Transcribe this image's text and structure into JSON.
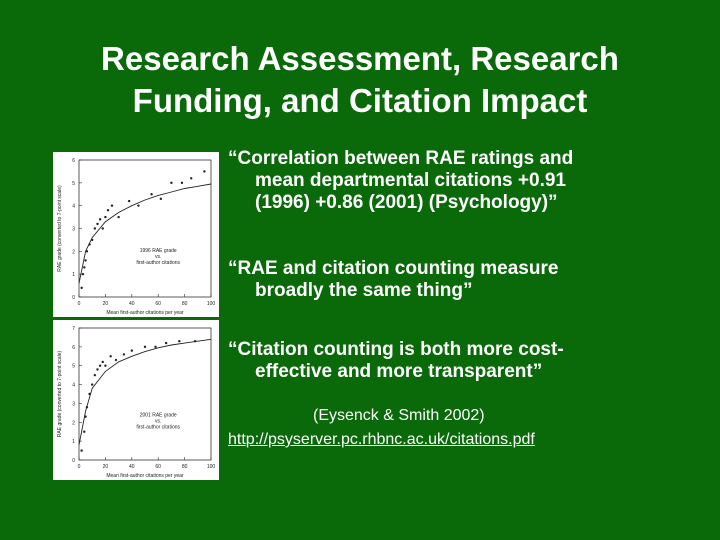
{
  "slide": {
    "title_line1": "Research Assessment, Research",
    "title_line2": "Funding, and Citation Impact",
    "bullets": [
      {
        "line1": "“Correlation between RAE ratings and",
        "line2": "mean departmental citations +0.91",
        "line3": "(1996) +0.86 (2001) (Psychology)”"
      },
      {
        "line1": "“RAE and citation counting measure",
        "line2": "broadly the same thing”"
      },
      {
        "line1": "“Citation counting is both more cost-",
        "line2": "effective and more transparent”"
      }
    ],
    "citation": "(Eysenck & Smith 2002)",
    "link": "http://psyserver.pc.rhbnc.ac.uk/citations.pdf"
  },
  "colors": {
    "background": "#0a6a0a",
    "text": "#ffffff"
  },
  "chart_data": [
    {
      "type": "scatter",
      "ylabel": "RAE grade (converted to 7-point scale)",
      "xlabel": "Mean first-author citations per year",
      "legend": [
        "1996 RAE grade",
        "vs.",
        "first-author citations"
      ],
      "xlim": [
        0,
        100
      ],
      "ylim": [
        0,
        6
      ],
      "xticks": [
        "0",
        "20",
        "40",
        "60",
        "80",
        "100"
      ],
      "yticks": [
        "0",
        "1",
        "2",
        "3",
        "4",
        "5",
        "6"
      ],
      "x": [
        2,
        3,
        4,
        5,
        6,
        8,
        10,
        12,
        14,
        16,
        18,
        20,
        22,
        25,
        30,
        38,
        45,
        55,
        62,
        70,
        78,
        85,
        95
      ],
      "y": [
        0.4,
        1.0,
        1.3,
        1.6,
        2.0,
        2.3,
        2.5,
        3.0,
        3.2,
        3.4,
        3.0,
        3.5,
        3.8,
        4.0,
        3.5,
        4.2,
        4.0,
        4.5,
        4.3,
        5.0,
        5.0,
        5.2,
        5.5
      ],
      "fit_x": [
        0,
        5,
        10,
        20,
        30,
        40,
        50,
        60,
        70,
        80,
        90,
        100
      ],
      "fit_y": [
        0.6,
        2.0,
        2.6,
        3.3,
        3.7,
        4.0,
        4.25,
        4.45,
        4.6,
        4.75,
        4.85,
        4.95
      ]
    },
    {
      "type": "scatter",
      "ylabel": "RAE grade (converted to 7-point scale)",
      "xlabel": "Mean first-author citations per year",
      "legend": [
        "2001 RAE grade",
        "vs.",
        "first-author citations"
      ],
      "xlim": [
        0,
        100
      ],
      "ylim": [
        0,
        7
      ],
      "xticks": [
        "0",
        "20",
        "40",
        "60",
        "80",
        "100"
      ],
      "yticks": [
        "0",
        "1",
        "2",
        "3",
        "4",
        "5",
        "6",
        "7"
      ],
      "x": [
        2,
        4,
        5,
        6,
        8,
        10,
        12,
        14,
        16,
        18,
        20,
        24,
        28,
        34,
        40,
        50,
        58,
        66,
        76,
        88
      ],
      "y": [
        0.5,
        1.5,
        2.3,
        2.8,
        3.5,
        4.0,
        4.5,
        4.8,
        5.0,
        5.2,
        5.0,
        5.5,
        5.3,
        5.6,
        5.8,
        6.0,
        6.0,
        6.2,
        6.3,
        6.3
      ],
      "fit_x": [
        0,
        5,
        10,
        20,
        30,
        40,
        50,
        60,
        70,
        80,
        90,
        100
      ],
      "fit_y": [
        0.8,
        2.6,
        3.8,
        4.7,
        5.2,
        5.5,
        5.75,
        5.95,
        6.1,
        6.2,
        6.3,
        6.4
      ]
    }
  ]
}
